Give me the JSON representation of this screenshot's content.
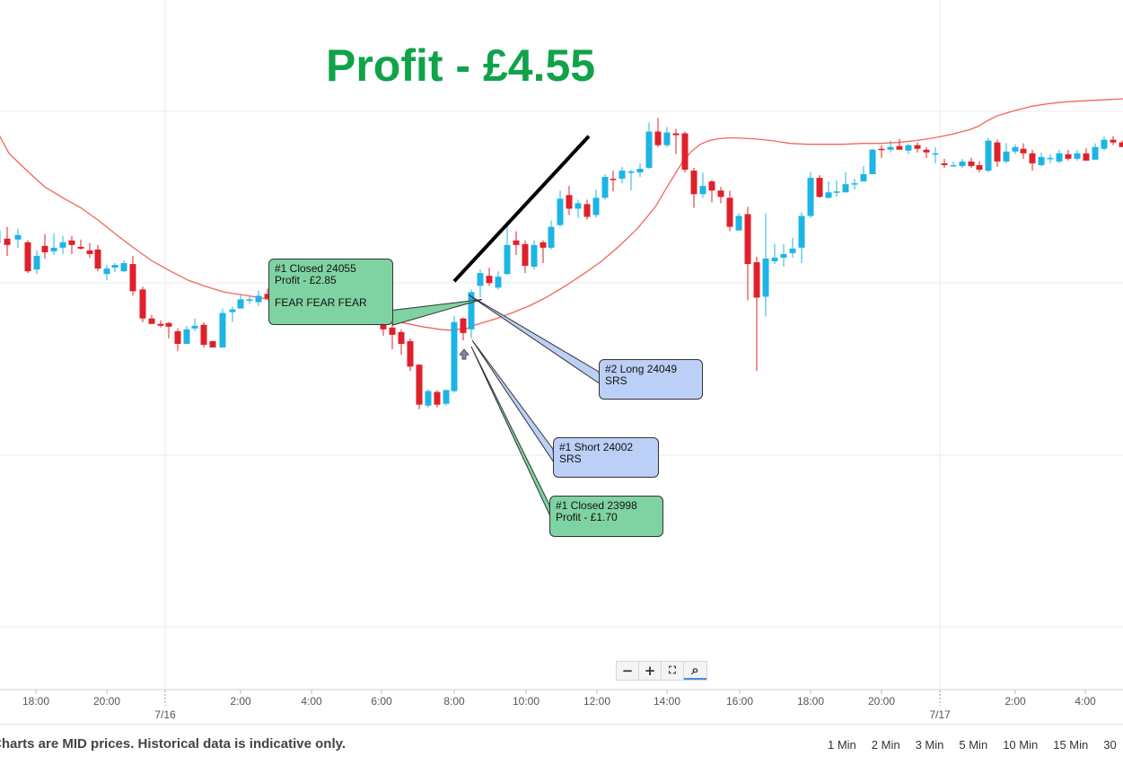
{
  "headline": "Profit - £4.55",
  "chart_data": {
    "type": "candlestick",
    "instrument_note": "",
    "x_tick_labels": [
      "18:00",
      "20:00",
      "2:00",
      "4:00",
      "6:00",
      "8:00",
      "10:00",
      "12:00",
      "14:00",
      "16:00",
      "18:00",
      "20:00",
      "2:00",
      "4:00"
    ],
    "date_labels": [
      "7/16",
      "7/17"
    ],
    "ylim": [
      23720,
      24480
    ],
    "grid": true,
    "colors": {
      "up": "#1db4e6",
      "down": "#e0202a",
      "ma": "#f26659",
      "grid": "#ebebeb"
    },
    "moving_average": [
      [
        -2,
        24333
      ],
      [
        10,
        24311
      ],
      [
        30,
        24292
      ],
      [
        50,
        24274
      ],
      [
        70,
        24262
      ],
      [
        90,
        24251
      ],
      [
        110,
        24237
      ],
      [
        130,
        24221
      ],
      [
        150,
        24206
      ],
      [
        170,
        24192
      ],
      [
        190,
        24181
      ],
      [
        210,
        24171
      ],
      [
        230,
        24164
      ],
      [
        250,
        24158
      ],
      [
        270,
        24155
      ],
      [
        290,
        24152
      ],
      [
        310,
        24147
      ],
      [
        330,
        24142
      ],
      [
        350,
        24138
      ],
      [
        370,
        24135
      ],
      [
        390,
        24131
      ],
      [
        410,
        24129
      ],
      [
        430,
        24127
      ],
      [
        450,
        24124
      ],
      [
        470,
        24120
      ],
      [
        490,
        24117
      ],
      [
        500,
        24116
      ],
      [
        510,
        24117
      ],
      [
        520,
        24118
      ],
      [
        530,
        24122
      ],
      [
        550,
        24128
      ],
      [
        570,
        24135
      ],
      [
        590,
        24143
      ],
      [
        610,
        24153
      ],
      [
        630,
        24165
      ],
      [
        650,
        24178
      ],
      [
        670,
        24192
      ],
      [
        690,
        24209
      ],
      [
        710,
        24228
      ],
      [
        730,
        24252
      ],
      [
        745,
        24277
      ],
      [
        760,
        24301
      ],
      [
        770,
        24313
      ],
      [
        780,
        24321
      ],
      [
        790,
        24325
      ],
      [
        800,
        24327
      ],
      [
        810,
        24328
      ],
      [
        820,
        24328
      ],
      [
        840,
        24327
      ],
      [
        860,
        24325
      ],
      [
        880,
        24322
      ],
      [
        900,
        24321
      ],
      [
        920,
        24321
      ],
      [
        940,
        24321
      ],
      [
        960,
        24322
      ],
      [
        980,
        24322
      ],
      [
        1000,
        24323
      ],
      [
        1020,
        24325
      ],
      [
        1040,
        24328
      ],
      [
        1060,
        24332
      ],
      [
        1080,
        24337
      ],
      [
        1090,
        24341
      ],
      [
        1100,
        24347
      ],
      [
        1110,
        24352
      ],
      [
        1130,
        24358
      ],
      [
        1150,
        24363
      ],
      [
        1170,
        24366
      ],
      [
        1190,
        24368
      ],
      [
        1210,
        24369
      ],
      [
        1230,
        24370
      ],
      [
        1251,
        24371
      ]
    ],
    "candles": [
      [
        -3,
        24212,
        24226,
        24230,
        24200
      ],
      [
        8,
        24217,
        24210,
        24230,
        24198
      ],
      [
        20,
        24216,
        24221,
        24228,
        24207
      ],
      [
        31,
        24213,
        24181,
        24215,
        24179
      ],
      [
        41,
        24183,
        24198,
        24204,
        24178
      ],
      [
        50,
        24209,
        24202,
        24222,
        24195
      ],
      [
        60,
        24203,
        24207,
        24223,
        24199
      ],
      [
        70,
        24207,
        24213,
        24220,
        24200
      ],
      [
        80,
        24215,
        24210,
        24220,
        24200
      ],
      [
        90,
        24208,
        24206,
        24216,
        24205
      ],
      [
        100,
        24204,
        24200,
        24212,
        24196
      ],
      [
        109,
        24205,
        24184,
        24210,
        24181
      ],
      [
        119,
        24178,
        24184,
        24188,
        24171
      ],
      [
        128,
        24185,
        24188,
        24190,
        24180
      ],
      [
        138,
        24181,
        24190,
        24193,
        24180
      ],
      [
        148,
        24189,
        24159,
        24198,
        24154
      ],
      [
        159,
        24161,
        24129,
        24164,
        24125
      ],
      [
        169,
        24129,
        24123,
        24133,
        24123
      ],
      [
        179,
        24123,
        24121,
        24127,
        24119
      ],
      [
        188,
        24124,
        24120,
        24125,
        24107
      ],
      [
        198,
        24115,
        24101,
        24118,
        24093
      ],
      [
        208,
        24101,
        24117,
        24121,
        24101
      ],
      [
        217,
        24118,
        24121,
        24129,
        24115
      ],
      [
        227,
        24122,
        24100,
        24125,
        24097
      ],
      [
        237,
        24104,
        24097,
        24104,
        24097
      ],
      [
        248,
        24097,
        24135,
        24140,
        24097
      ],
      [
        259,
        24136,
        24139,
        24142,
        24125
      ],
      [
        268,
        24140,
        24150,
        24155,
        24140
      ],
      [
        278,
        24150,
        24150,
        24153,
        24145
      ],
      [
        288,
        24147,
        24154,
        24160,
        24143
      ],
      [
        298,
        24156,
        24151,
        24162,
        24150
      ],
      [
        308,
        24152,
        24132,
        24156,
        24129
      ],
      [
        318,
        24131,
        24136,
        24140,
        24131
      ],
      [
        328,
        24137,
        24126,
        24140,
        24126
      ],
      [
        337,
        24130,
        24125,
        24135,
        24123
      ],
      [
        348,
        24129,
        24137,
        24140,
        24128
      ],
      [
        357,
        24137,
        24139,
        24142,
        24132
      ],
      [
        367,
        24142,
        24136,
        24144,
        24134
      ],
      [
        377,
        24137,
        24140,
        24142,
        24135
      ],
      [
        387,
        24138,
        24148,
        24153,
        24137
      ],
      [
        397,
        24145,
        24138,
        24147,
        24133
      ],
      [
        407,
        24137,
        24135,
        24141,
        24134
      ],
      [
        417,
        24136,
        24134,
        24137,
        24134
      ],
      [
        427,
        24135,
        24117,
        24190,
        24110
      ],
      [
        437,
        24119,
        24111,
        24124,
        24095
      ],
      [
        447,
        24114,
        24101,
        24117,
        24089
      ],
      [
        457,
        24104,
        24076,
        24107,
        24071
      ],
      [
        467,
        24078,
        24034,
        24079,
        24029
      ],
      [
        477,
        24033,
        24049,
        24051,
        24031
      ],
      [
        487,
        24048,
        24034,
        24050,
        24031
      ],
      [
        497,
        24035,
        24050,
        24051,
        24033
      ],
      [
        506,
        24049,
        24125,
        24132,
        24047
      ],
      [
        516,
        24129,
        24113,
        24130,
        24105
      ],
      [
        525,
        24117,
        24158,
        24161,
        24107
      ],
      [
        535,
        24165,
        24179,
        24183,
        24152
      ],
      [
        545,
        24176,
        24168,
        24185,
        24165
      ],
      [
        555,
        24163,
        24175,
        24181,
        24161
      ],
      [
        565,
        24178,
        24210,
        24233,
        24177
      ],
      [
        575,
        24215,
        24210,
        24225,
        24199
      ],
      [
        585,
        24211,
        24187,
        24215,
        24179
      ],
      [
        595,
        24186,
        24210,
        24215,
        24183
      ],
      [
        605,
        24213,
        24207,
        24215,
        24190
      ],
      [
        614,
        24207,
        24230,
        24237,
        24205
      ],
      [
        624,
        24232,
        24261,
        24270,
        24230
      ],
      [
        634,
        24265,
        24250,
        24275,
        24243
      ],
      [
        644,
        24250,
        24256,
        24260,
        24240
      ],
      [
        654,
        24255,
        24241,
        24260,
        24238
      ],
      [
        664,
        24243,
        24262,
        24271,
        24240
      ],
      [
        674,
        24262,
        24285,
        24288,
        24260
      ],
      [
        683,
        24283,
        24282,
        24292,
        24269
      ],
      [
        693,
        24283,
        24292,
        24296,
        24278
      ],
      [
        703,
        24290,
        24291,
        24293,
        24270
      ],
      [
        713,
        24290,
        24294,
        24300,
        24285
      ],
      [
        723,
        24295,
        24335,
        24345,
        24294
      ],
      [
        733,
        24335,
        24320,
        24350,
        24318
      ],
      [
        743,
        24320,
        24334,
        24340,
        24318
      ],
      [
        753,
        24333,
        24331,
        24338,
        24310
      ],
      [
        763,
        24333,
        24293,
        24335,
        24290
      ],
      [
        773,
        24292,
        24266,
        24295,
        24251
      ],
      [
        783,
        24266,
        24275,
        24290,
        24262
      ],
      [
        793,
        24280,
        24270,
        24282,
        24257
      ],
      [
        803,
        24270,
        24263,
        24274,
        24256
      ],
      [
        813,
        24262,
        24230,
        24270,
        24225
      ],
      [
        823,
        24226,
        24242,
        24245,
        24226
      ],
      [
        833,
        24244,
        24189,
        24252,
        24149
      ],
      [
        843,
        24191,
        24152,
        24197,
        24071
      ],
      [
        853,
        24153,
        24195,
        24245,
        24131
      ],
      [
        863,
        24192,
        24196,
        24211,
        24189
      ],
      [
        873,
        24196,
        24200,
        24211,
        24186
      ],
      [
        883,
        24201,
        24206,
        24218,
        24196
      ],
      [
        893,
        24207,
        24242,
        24246,
        24190
      ],
      [
        903,
        24242,
        24284,
        24290,
        24240
      ],
      [
        913,
        24284,
        24263,
        24287,
        24262
      ],
      [
        923,
        24262,
        24268,
        24280,
        24261
      ],
      [
        932,
        24268,
        24269,
        24281,
        24263
      ],
      [
        942,
        24268,
        24277,
        24290,
        24268
      ],
      [
        952,
        24277,
        24278,
        24283,
        24271
      ],
      [
        962,
        24280,
        24288,
        24297,
        24282
      ],
      [
        972,
        24288,
        24315,
        24316,
        24288
      ],
      [
        982,
        24316,
        24315,
        24320,
        24306
      ],
      [
        992,
        24315,
        24318,
        24325,
        24312
      ],
      [
        1002,
        24319,
        24315,
        24327,
        24315
      ],
      [
        1012,
        24314,
        24320,
        24322,
        24310
      ],
      [
        1022,
        24320,
        24316,
        24323,
        24312
      ],
      [
        1032,
        24315,
        24312,
        24318,
        24306
      ],
      [
        1042,
        24311,
        24311,
        24318,
        24300
      ],
      [
        1052,
        24300,
        24298,
        24305,
        24295
      ],
      [
        1062,
        24298,
        24298,
        24302,
        24298
      ],
      [
        1072,
        24297,
        24302,
        24305,
        24295
      ],
      [
        1082,
        24302,
        24297,
        24306,
        24295
      ],
      [
        1091,
        24298,
        24293,
        24302,
        24290
      ],
      [
        1101,
        24292,
        24325,
        24328,
        24290
      ],
      [
        1111,
        24323,
        24302,
        24326,
        24296
      ],
      [
        1121,
        24302,
        24313,
        24322,
        24300
      ],
      [
        1131,
        24313,
        24318,
        24321,
        24310
      ],
      [
        1140,
        24316,
        24311,
        24322,
        24305
      ],
      [
        1150,
        24311,
        24300,
        24315,
        24292
      ],
      [
        1160,
        24298,
        24307,
        24312,
        24297
      ],
      [
        1170,
        24305,
        24306,
        24310,
        24300
      ],
      [
        1180,
        24302,
        24311,
        24315,
        24300
      ],
      [
        1190,
        24310,
        24305,
        24315,
        24303
      ],
      [
        1200,
        24305,
        24311,
        24315,
        24303
      ],
      [
        1210,
        24311,
        24303,
        24317,
        24303
      ],
      [
        1220,
        24304,
        24318,
        24322,
        24304
      ],
      [
        1230,
        24316,
        24326,
        24330,
        24314
      ],
      [
        1240,
        24326,
        24323,
        24330,
        24320
      ],
      [
        1250,
        24323,
        24318,
        24325,
        24318
      ]
    ],
    "trend_line": [
      [
        506,
        24170
      ],
      [
        656,
        24330
      ]
    ],
    "annotations": [
      {
        "id": "note1",
        "lines": [
          "#1 Closed 24055",
          "Profit - £2.85",
          "",
          "FEAR FEAR FEAR"
        ],
        "style": "green",
        "target": [
          537,
          24150
        ]
      },
      {
        "id": "note2",
        "lines": [
          "#2 Long 24049",
          "SRS"
        ],
        "style": "blue",
        "target": [
          522,
          24155
        ]
      },
      {
        "id": "note3",
        "lines": [
          "#1 Short 24002",
          "SRS"
        ],
        "style": "blue",
        "target": [
          526,
          24105
        ]
      },
      {
        "id": "note4",
        "lines": [
          "#1 Closed 23998",
          "Profit - £1.70"
        ],
        "style": "green",
        "target": [
          525,
          24098
        ]
      }
    ],
    "marker": {
      "type": "up-arrow",
      "at": [
        517,
        24089
      ]
    }
  },
  "zoom_controls": [
    {
      "label": "−",
      "icon": "zoom-out-icon"
    },
    {
      "label": "+",
      "icon": "zoom-in-icon"
    },
    {
      "label": "⛶",
      "icon": "fullscreen-icon"
    },
    {
      "label": "⌕",
      "icon": "zoom-reset-icon"
    }
  ],
  "footer": {
    "disclaimer": "Charts are MID prices. Historical data is indicative only.",
    "intervals": [
      "1 Min",
      "2 Min",
      "3 Min",
      "5 Min",
      "10 Min",
      "15 Min",
      "30"
    ]
  }
}
